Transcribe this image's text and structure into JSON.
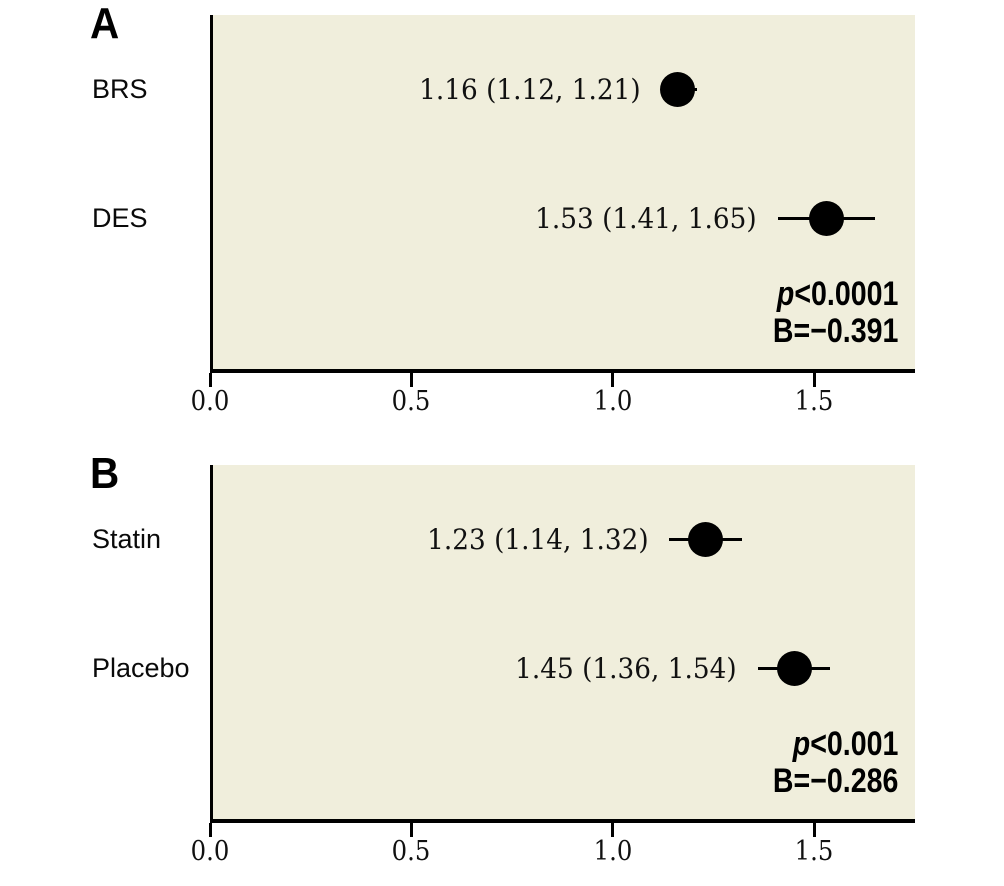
{
  "figure": {
    "background_color": "#ffffff",
    "plot_background_color": "#f0eedc",
    "marker_color": "#000000",
    "axis_color": "#000000"
  },
  "chart_data": [
    {
      "type": "scatter",
      "subtype": "forest-plot",
      "panel_label": "A",
      "categories": [
        "BRS",
        "DES"
      ],
      "series": [
        {
          "category": "BRS",
          "mean": 1.16,
          "ci_low": 1.12,
          "ci_high": 1.21,
          "label": "1.16 (1.12, 1.21)"
        },
        {
          "category": "DES",
          "mean": 1.53,
          "ci_low": 1.41,
          "ci_high": 1.65,
          "label": "1.53 (1.41, 1.65)"
        }
      ],
      "annotation": {
        "p_italic": "p",
        "p_rest": "<0.0001",
        "beta": "B=−0.391"
      },
      "xlabel": "",
      "ylabel": "",
      "xlim": [
        0,
        1.75
      ],
      "xticks": [
        "0.0",
        "0.5",
        "1.0",
        "1.5"
      ],
      "xtick_values": [
        0,
        0.5,
        1.0,
        1.5
      ],
      "grid": false,
      "legend": "none"
    },
    {
      "type": "scatter",
      "subtype": "forest-plot",
      "panel_label": "B",
      "categories": [
        "Statin",
        "Placebo"
      ],
      "series": [
        {
          "category": "Statin",
          "mean": 1.23,
          "ci_low": 1.14,
          "ci_high": 1.32,
          "label": "1.23 (1.14, 1.32)"
        },
        {
          "category": "Placebo",
          "mean": 1.45,
          "ci_low": 1.36,
          "ci_high": 1.54,
          "label": "1.45 (1.36, 1.54)"
        }
      ],
      "annotation": {
        "p_italic": "p",
        "p_rest": "<0.001",
        "beta": "B=−0.286"
      },
      "xlabel": "",
      "ylabel": "",
      "xlim": [
        0,
        1.75
      ],
      "xticks": [
        "0.0",
        "0.5",
        "1.0",
        "1.5"
      ],
      "xtick_values": [
        0,
        0.5,
        1.0,
        1.5
      ],
      "grid": false,
      "legend": "none"
    }
  ]
}
